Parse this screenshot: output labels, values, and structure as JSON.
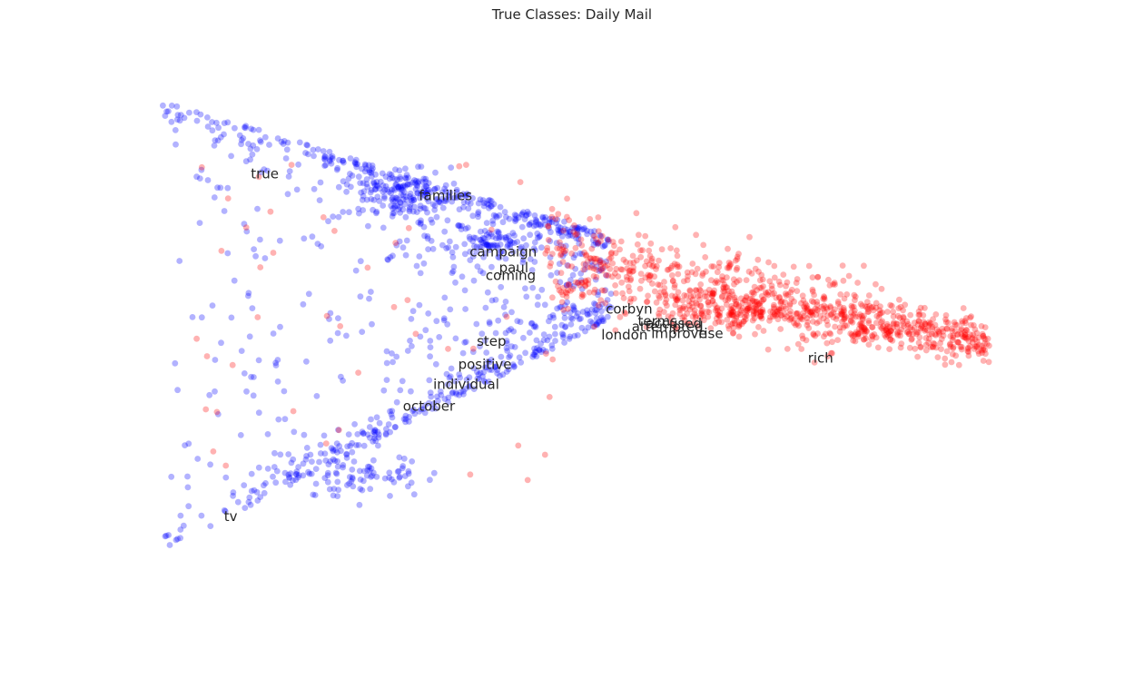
{
  "chart_data": {
    "type": "scatter",
    "title": "True Classes: Daily Mail",
    "xlabel": "",
    "ylabel": "",
    "axes_visible": false,
    "grid": false,
    "legend": "none",
    "xlim": [
      0,
      100
    ],
    "ylim": [
      0,
      100
    ],
    "series": [
      {
        "color": "#0000ff",
        "alpha": 0.3,
        "generated_description": "dense fan-shaped cloud on the left and middle"
      },
      {
        "color": "#ff0000",
        "alpha": 0.3,
        "generated_description": "elongated cloud extending to the right"
      }
    ],
    "annotations": [
      {
        "text": "true",
        "x": 13.9,
        "y": 79.0
      },
      {
        "text": "families",
        "x": 32.8,
        "y": 75.3
      },
      {
        "text": "campaign",
        "x": 38.5,
        "y": 65.8
      },
      {
        "text": "paul",
        "x": 41.8,
        "y": 63.1
      },
      {
        "text": "coming",
        "x": 40.3,
        "y": 61.8
      },
      {
        "text": "corbyn",
        "x": 53.8,
        "y": 56.1
      },
      {
        "text": "terms",
        "x": 57.4,
        "y": 54.0
      },
      {
        "text": "attempted",
        "x": 56.7,
        "y": 53.1
      },
      {
        "text": "accused",
        "x": 58.3,
        "y": 53.6
      },
      {
        "text": "london",
        "x": 53.3,
        "y": 51.7
      },
      {
        "text": "improve",
        "x": 58.9,
        "y": 51.9
      },
      {
        "text": "rise",
        "x": 64.2,
        "y": 51.9
      },
      {
        "text": "step",
        "x": 39.3,
        "y": 50.6
      },
      {
        "text": "rich",
        "x": 76.5,
        "y": 47.8
      },
      {
        "text": "positive",
        "x": 37.2,
        "y": 46.7
      },
      {
        "text": "individual",
        "x": 34.4,
        "y": 43.3
      },
      {
        "text": "october",
        "x": 31.0,
        "y": 39.6
      },
      {
        "text": "tv",
        "x": 10.9,
        "y": 20.9
      }
    ]
  }
}
